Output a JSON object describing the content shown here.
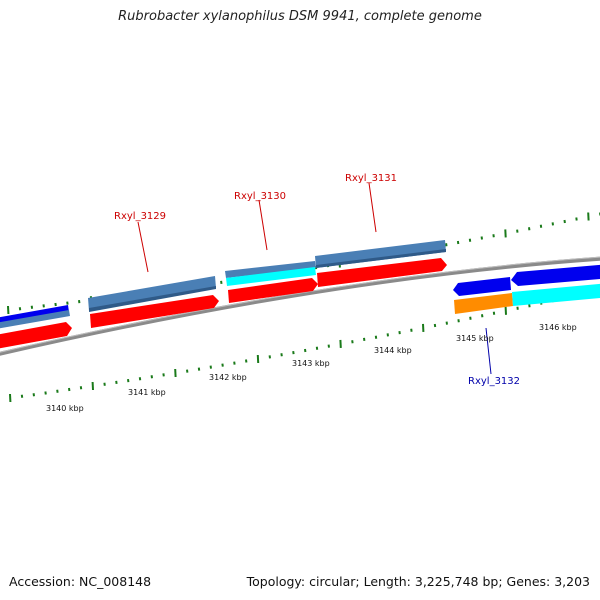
{
  "title": "Rubrobacter xylanophilus DSM 9941, complete genome",
  "footer": {
    "accession": "Accession: NC_008148",
    "summary": "Topology: circular; Length: 3,225,748 bp; Genes: 3,203"
  },
  "colors": {
    "backbone": "#8a8a8a",
    "forward_gene_label": "#cc0000",
    "reverse_gene_label": "#0000aa",
    "tick": "#1a7a1a",
    "cds": "#ff0000",
    "gene_forward": "#4a7fb5",
    "gene_reverse": "#0000ee",
    "cyan_feature": "#00ffff",
    "orange_feature": "#ff8c00"
  },
  "scale_labels": [
    "3140 kbp",
    "3141 kbp",
    "3142 kbp",
    "3143 kbp",
    "3144 kbp",
    "3145 kbp",
    "3146 kbp"
  ],
  "gene_labels": [
    "Rxyl_3129",
    "Rxyl_3130",
    "Rxyl_3131",
    "Rxyl_3132"
  ]
}
